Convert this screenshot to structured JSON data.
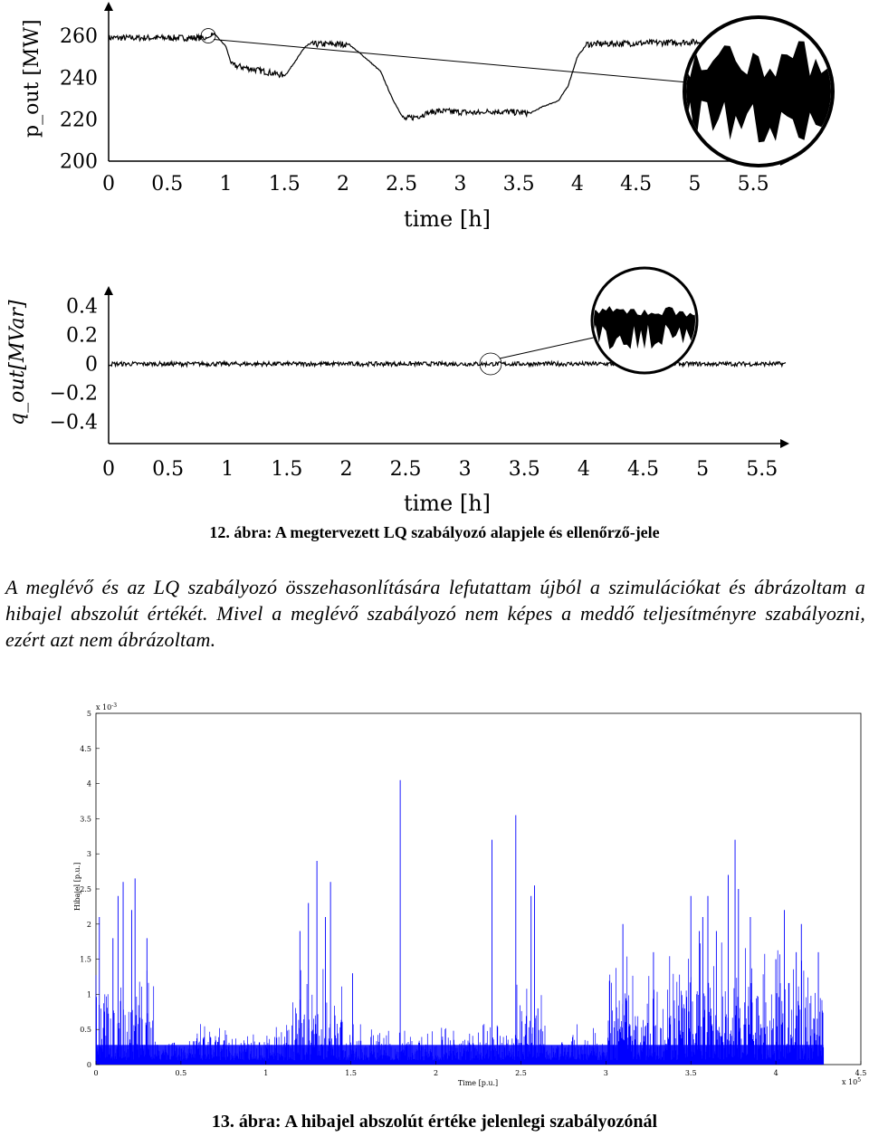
{
  "figure12": {
    "caption": "12. ábra: A megtervezett LQ szabályozó alapjele és ellenőrző-jele"
  },
  "paragraph": "A meglévő és az LQ szabályozó összehasonlítására lefutattam újból a szimulációkat és ábrázoltam a hibajel abszolút értékét. Mivel a meglévő szabályozó nem képes a meddő teljesítményre szabályozni, ezért azt nem ábrázoltam.",
  "figure13": {
    "caption": "13. ábra: A hibajel abszolút értéke jelenlegi szabályozónál"
  },
  "chart_data": [
    {
      "type": "line",
      "ylabel": "p_out [MW]",
      "xlabel": "time [h]",
      "xlim": [
        0,
        5.7
      ],
      "ylim": [
        200,
        265
      ],
      "xticks": [
        "0",
        "0.5",
        "1",
        "1.5",
        "2",
        "2.5",
        "3",
        "3.5",
        "4",
        "4.5",
        "5",
        "5.5"
      ],
      "yticks": [
        "200",
        "220",
        "240",
        "260"
      ],
      "x": [
        0,
        0.85,
        0.9,
        0.95,
        1.0,
        1.05,
        1.5,
        1.52,
        1.68,
        1.75,
        1.82,
        2.05,
        2.2,
        2.32,
        2.42,
        2.52,
        2.6,
        2.8,
        3.2,
        3.25,
        3.6,
        3.7,
        3.84,
        3.92,
        4.0,
        4.08,
        5.0,
        5.3,
        5.7
      ],
      "y": [
        259,
        259,
        261,
        258,
        255,
        246,
        241,
        242,
        255,
        256,
        256,
        256,
        249,
        243,
        230,
        220,
        221,
        224,
        223,
        224,
        223,
        226,
        229,
        236,
        250,
        256,
        257,
        257,
        257
      ],
      "noise_amplitude": 1.5,
      "zoom_inset": {
        "center_x": 0.85,
        "center_y": 260
      },
      "grid": false
    },
    {
      "type": "line",
      "ylabel": "q_out[MVar]",
      "xlabel": "time [h]",
      "xlim": [
        0,
        5.7
      ],
      "ylim": [
        -0.45,
        0.45
      ],
      "xticks": [
        "0",
        "0.5",
        "1",
        "1.5",
        "2",
        "2.5",
        "3",
        "3.5",
        "4",
        "4.5",
        "5",
        "5.5"
      ],
      "yticks": [
        "0.4",
        "0.2",
        "0",
        "−0.2",
        "−0.4"
      ],
      "x": [
        0,
        5.7
      ],
      "y": [
        0,
        0
      ],
      "noise_amplitude": 0.015,
      "zoom_inset": {
        "center_x": 3.2,
        "center_y": 0
      },
      "grid": false
    },
    {
      "type": "line",
      "ylabel": "Hibajel [p.u.]",
      "xlabel": "Time [p.u.]",
      "xlim": [
        0,
        4.5
      ],
      "ylim": [
        0,
        0.005
      ],
      "x_multiplier": "x 10^5",
      "y_multiplier": "x 10^-3",
      "xticks": [
        "0",
        "0.5",
        "1",
        "1.5",
        "2",
        "2.5",
        "3",
        "3.5",
        "4",
        "4.5"
      ],
      "yticks": [
        "0",
        "0.5",
        "1",
        "1.5",
        "2",
        "2.5",
        "3",
        "3.5",
        "4",
        "4.5",
        "5"
      ],
      "series": [
        {
          "color": "#0000ff",
          "peaks": [
            {
              "x": 0.02,
              "y": 0.0021
            },
            {
              "x": 0.1,
              "y": 0.0018
            },
            {
              "x": 0.13,
              "y": 0.0024
            },
            {
              "x": 0.16,
              "y": 0.0026
            },
            {
              "x": 0.21,
              "y": 0.0022
            },
            {
              "x": 0.23,
              "y": 0.00265
            },
            {
              "x": 0.3,
              "y": 0.0018
            },
            {
              "x": 1.2,
              "y": 0.0019
            },
            {
              "x": 1.25,
              "y": 0.0023
            },
            {
              "x": 1.3,
              "y": 0.0029
            },
            {
              "x": 1.35,
              "y": 0.0021
            },
            {
              "x": 1.38,
              "y": 0.0026
            },
            {
              "x": 1.51,
              "y": 0.0013
            },
            {
              "x": 1.79,
              "y": 0.00405
            },
            {
              "x": 2.33,
              "y": 0.0032
            },
            {
              "x": 2.47,
              "y": 0.00355
            },
            {
              "x": 2.56,
              "y": 0.0024
            },
            {
              "x": 2.58,
              "y": 0.00255
            },
            {
              "x": 2.6,
              "y": 0.0008
            },
            {
              "x": 3.1,
              "y": 0.002
            },
            {
              "x": 3.28,
              "y": 0.0016
            },
            {
              "x": 3.5,
              "y": 0.0024
            },
            {
              "x": 3.55,
              "y": 0.0019
            },
            {
              "x": 3.57,
              "y": 0.0021
            },
            {
              "x": 3.6,
              "y": 0.0024
            },
            {
              "x": 3.65,
              "y": 0.0019
            },
            {
              "x": 3.72,
              "y": 0.0027
            },
            {
              "x": 3.76,
              "y": 0.0032
            },
            {
              "x": 3.78,
              "y": 0.0025
            },
            {
              "x": 3.85,
              "y": 0.0021
            },
            {
              "x": 4.0,
              "y": 0.0015
            },
            {
              "x": 4.05,
              "y": 0.0022
            },
            {
              "x": 4.12,
              "y": 0.0016
            },
            {
              "x": 4.15,
              "y": 0.002
            },
            {
              "x": 4.25,
              "y": 0.0016
            }
          ],
          "xmax": 4.28
        }
      ],
      "grid": false
    }
  ]
}
